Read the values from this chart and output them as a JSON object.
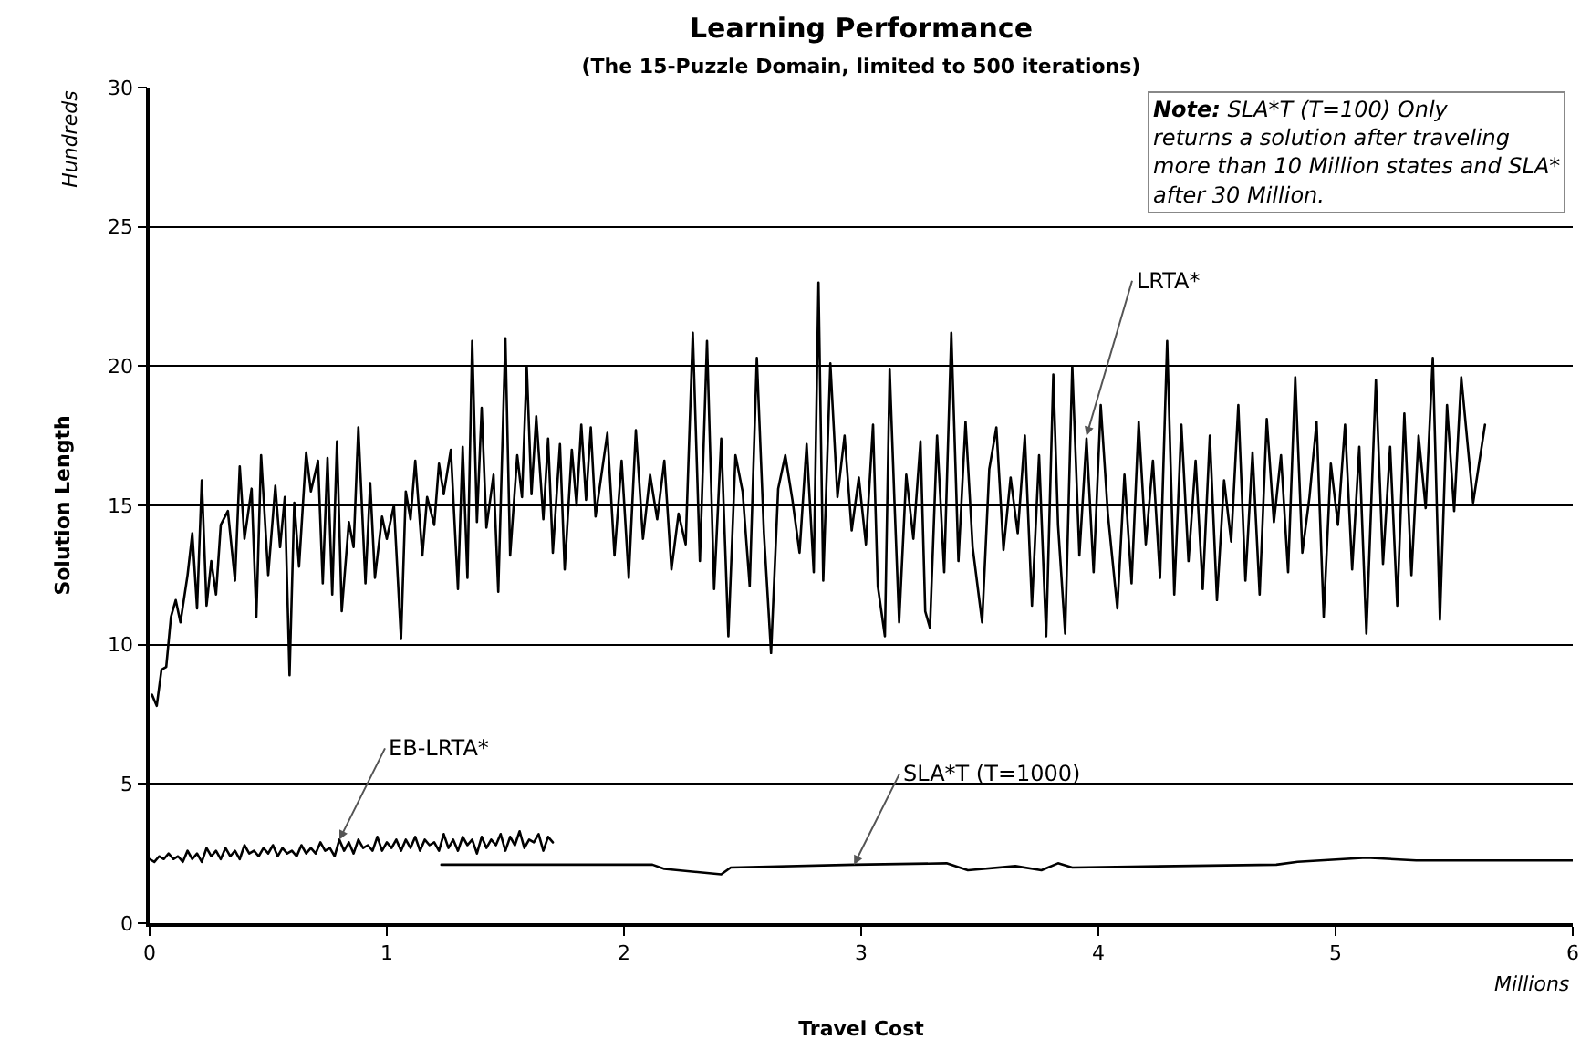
{
  "chart_data": {
    "type": "line",
    "title": "Learning Performance",
    "subtitle": "(The 15-Puzzle Domain, limited to 500 iterations)",
    "xlabel": "Travel Cost",
    "ylabel": "Solution Length",
    "xlim": [
      0,
      6
    ],
    "xticks": [
      0,
      1,
      2,
      3,
      4,
      5,
      6
    ],
    "ylim": [
      0,
      30
    ],
    "yticks": [
      0,
      5,
      10,
      15,
      20,
      25,
      30
    ],
    "grid": "y",
    "legend": false,
    "marker": "none",
    "line_style": "solid",
    "series": [
      {
        "color": "#000000",
        "x": [
          0.01,
          0.03,
          0.05,
          0.07,
          0.09,
          0.11,
          0.13,
          0.16,
          0.18,
          0.2,
          0.22,
          0.24,
          0.26,
          0.28,
          0.3,
          0.33,
          0.36,
          0.38,
          0.4,
          0.43,
          0.45,
          0.47,
          0.5,
          0.53,
          0.55,
          0.57,
          0.59,
          0.61,
          0.63,
          0.66,
          0.68,
          0.71,
          0.73,
          0.75,
          0.77,
          0.79,
          0.81,
          0.84,
          0.86,
          0.88,
          0.91,
          0.93,
          0.95,
          0.98,
          1.0,
          1.03,
          1.06,
          1.08,
          1.1,
          1.12,
          1.15,
          1.17,
          1.2,
          1.22,
          1.24,
          1.27,
          1.3,
          1.32,
          1.34,
          1.36,
          1.38,
          1.4,
          1.42,
          1.45,
          1.47,
          1.5,
          1.52,
          1.55,
          1.57,
          1.59,
          1.61,
          1.63,
          1.66,
          1.68,
          1.7,
          1.73,
          1.75,
          1.78,
          1.8,
          1.82,
          1.84,
          1.86,
          1.88,
          1.9,
          1.93,
          1.96,
          1.99,
          2.02,
          2.05,
          2.08,
          2.11,
          2.14,
          2.17,
          2.2,
          2.23,
          2.26,
          2.29,
          2.32,
          2.35,
          2.38,
          2.41,
          2.44,
          2.47,
          2.5,
          2.53,
          2.56,
          2.59,
          2.62,
          2.65,
          2.68,
          2.71,
          2.74,
          2.77,
          2.8,
          2.82,
          2.84,
          2.87,
          2.9,
          2.93,
          2.96,
          2.99,
          3.02,
          3.05,
          3.07,
          3.1,
          3.12,
          3.14,
          3.16,
          3.19,
          3.22,
          3.25,
          3.27,
          3.29,
          3.32,
          3.35,
          3.38,
          3.41,
          3.44,
          3.47,
          3.51,
          3.54,
          3.57,
          3.6,
          3.63,
          3.66,
          3.69,
          3.72,
          3.75,
          3.78,
          3.81,
          3.83,
          3.86,
          3.89,
          3.92,
          3.95,
          3.98,
          4.01,
          4.04,
          4.08,
          4.11,
          4.14,
          4.17,
          4.2,
          4.23,
          4.26,
          4.29,
          4.32,
          4.35,
          4.38,
          4.41,
          4.44,
          4.47,
          4.5,
          4.53,
          4.56,
          4.59,
          4.62,
          4.65,
          4.68,
          4.71,
          4.74,
          4.77,
          4.8,
          4.83,
          4.86,
          4.89,
          4.92,
          4.95,
          4.98,
          5.01,
          5.04,
          5.07,
          5.1,
          5.13,
          5.17,
          5.2,
          5.23,
          5.26,
          5.29,
          5.32,
          5.35,
          5.38,
          5.41,
          5.44,
          5.47,
          5.5,
          5.53,
          5.58,
          5.63
        ],
        "values": [
          8.2,
          7.8,
          9.1,
          9.2,
          11.0,
          11.6,
          10.8,
          12.5,
          14.0,
          11.3,
          15.9,
          11.4,
          13.0,
          11.8,
          14.3,
          14.8,
          12.3,
          16.4,
          13.8,
          15.6,
          11.0,
          16.8,
          12.5,
          15.7,
          13.5,
          15.3,
          8.9,
          15.1,
          12.8,
          16.9,
          15.5,
          16.6,
          12.2,
          16.7,
          11.8,
          17.3,
          11.2,
          14.4,
          13.5,
          17.8,
          12.2,
          15.8,
          12.4,
          14.6,
          13.8,
          15.0,
          10.2,
          15.5,
          14.5,
          16.6,
          13.2,
          15.3,
          14.3,
          16.5,
          15.4,
          17.0,
          12.0,
          17.1,
          12.4,
          20.9,
          14.4,
          18.5,
          14.2,
          16.1,
          11.9,
          21.0,
          13.2,
          16.8,
          15.3,
          20.0,
          15.4,
          18.2,
          14.5,
          17.4,
          13.3,
          17.2,
          12.7,
          17.0,
          15.0,
          17.9,
          15.2,
          17.8,
          14.6,
          15.8,
          17.6,
          13.2,
          16.6,
          12.4,
          17.7,
          13.8,
          16.1,
          14.5,
          16.6,
          12.7,
          14.7,
          13.6,
          21.2,
          13.0,
          20.9,
          12.0,
          17.4,
          10.3,
          16.8,
          15.5,
          12.1,
          20.3,
          14.0,
          9.7,
          15.6,
          16.8,
          15.2,
          13.3,
          17.2,
          12.6,
          23.0,
          12.3,
          20.1,
          15.3,
          17.5,
          14.1,
          16.0,
          13.6,
          17.9,
          12.1,
          10.3,
          19.9,
          15.2,
          10.8,
          16.1,
          13.8,
          17.3,
          11.2,
          10.6,
          17.5,
          12.6,
          21.2,
          13.0,
          18.0,
          13.5,
          10.8,
          16.3,
          17.8,
          13.4,
          16.0,
          14.0,
          17.5,
          11.4,
          16.8,
          10.3,
          19.7,
          14.3,
          10.4,
          20.0,
          13.2,
          17.4,
          12.6,
          18.6,
          14.7,
          11.3,
          16.1,
          12.2,
          18.0,
          13.6,
          16.6,
          12.4,
          20.9,
          11.8,
          17.9,
          13.0,
          16.6,
          12.0,
          17.5,
          11.6,
          15.9,
          13.7,
          18.6,
          12.3,
          16.9,
          11.8,
          18.1,
          14.4,
          16.8,
          12.6,
          19.6,
          13.3,
          15.3,
          18.0,
          11.0,
          16.5,
          14.3,
          17.9,
          12.7,
          17.1,
          10.4,
          19.5,
          12.9,
          17.1,
          11.4,
          18.3,
          12.5,
          17.5,
          14.9,
          20.3,
          10.9,
          18.6,
          14.8,
          19.6,
          15.1,
          17.9
        ]
      },
      {
        "color": "#000000",
        "x": [
          0.0,
          0.02,
          0.04,
          0.06,
          0.08,
          0.1,
          0.12,
          0.14,
          0.16,
          0.18,
          0.2,
          0.22,
          0.24,
          0.26,
          0.28,
          0.3,
          0.32,
          0.34,
          0.36,
          0.38,
          0.4,
          0.42,
          0.44,
          0.46,
          0.48,
          0.5,
          0.52,
          0.54,
          0.56,
          0.58,
          0.6,
          0.62,
          0.64,
          0.66,
          0.68,
          0.7,
          0.72,
          0.74,
          0.76,
          0.78,
          0.8,
          0.82,
          0.84,
          0.86,
          0.88,
          0.9,
          0.92,
          0.94,
          0.96,
          0.98,
          1.0,
          1.02,
          1.04,
          1.06,
          1.08,
          1.1,
          1.12,
          1.14,
          1.16,
          1.18,
          1.2,
          1.22,
          1.24,
          1.26,
          1.28,
          1.3,
          1.32,
          1.34,
          1.36,
          1.38,
          1.4,
          1.42,
          1.44,
          1.46,
          1.48,
          1.5,
          1.52,
          1.54,
          1.56,
          1.58,
          1.6,
          1.62,
          1.64,
          1.66,
          1.68,
          1.7
        ],
        "values": [
          2.3,
          2.2,
          2.4,
          2.3,
          2.5,
          2.3,
          2.4,
          2.2,
          2.6,
          2.3,
          2.5,
          2.2,
          2.7,
          2.4,
          2.6,
          2.3,
          2.7,
          2.4,
          2.6,
          2.3,
          2.8,
          2.5,
          2.6,
          2.4,
          2.7,
          2.5,
          2.8,
          2.4,
          2.7,
          2.5,
          2.6,
          2.4,
          2.8,
          2.5,
          2.7,
          2.5,
          2.9,
          2.6,
          2.7,
          2.4,
          3.0,
          2.6,
          2.9,
          2.5,
          3.0,
          2.7,
          2.8,
          2.6,
          3.1,
          2.6,
          2.9,
          2.7,
          3.0,
          2.6,
          3.0,
          2.7,
          3.1,
          2.6,
          3.0,
          2.8,
          2.9,
          2.6,
          3.2,
          2.7,
          3.0,
          2.6,
          3.1,
          2.8,
          3.0,
          2.5,
          3.1,
          2.7,
          3.0,
          2.8,
          3.2,
          2.6,
          3.1,
          2.8,
          3.3,
          2.7,
          3.0,
          2.9,
          3.2,
          2.6,
          3.1,
          2.9
        ]
      },
      {
        "color": "#000000",
        "x": [
          1.23,
          2.12,
          2.17,
          2.41,
          2.45,
          2.97,
          3.36,
          3.45,
          3.65,
          3.76,
          3.83,
          3.89,
          4.75,
          4.84,
          5.13,
          5.34,
          6.0
        ],
        "values": [
          2.1,
          2.1,
          1.95,
          1.75,
          2.0,
          2.1,
          2.15,
          1.9,
          2.05,
          1.9,
          2.15,
          2.0,
          2.1,
          2.2,
          2.35,
          2.25,
          2.25
        ]
      }
    ],
    "annotations": [
      "Note: SLA*T (T=100) Only returns a solution after traveling more than 10 Million states and SLA* after 30 Million.",
      "Hundreds",
      "Millions",
      {
        "text": "LRTA*",
        "x": 3.95,
        "y": 17.5
      },
      {
        "text": "EB-LRTA*",
        "x": 0.8,
        "y": 3.0
      },
      {
        "text": "SLA*T (T=1000)",
        "x": 2.97,
        "y": 2.1
      }
    ]
  }
}
